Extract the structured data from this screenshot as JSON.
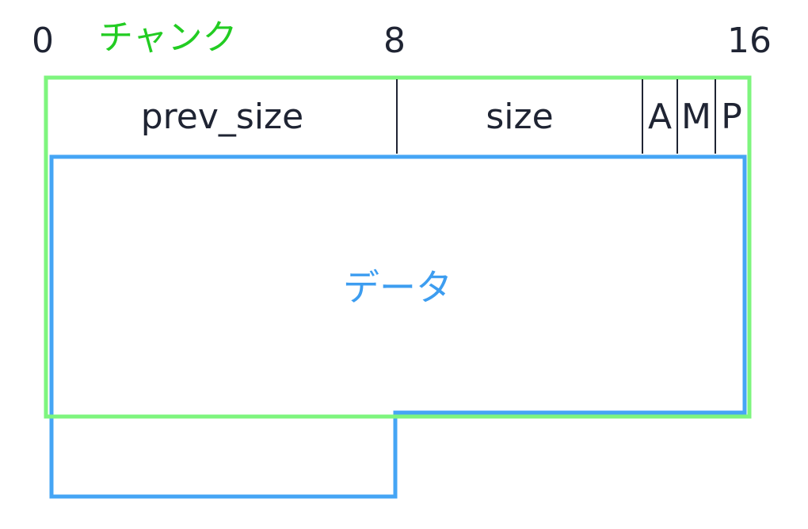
{
  "offsets": {
    "start": "0",
    "mid": "8",
    "end": "16"
  },
  "chunk": {
    "title": "チャンク"
  },
  "header": {
    "prev_size": "prev_size",
    "size": "size",
    "flag_a": "A",
    "flag_m": "M",
    "flag_p": "P"
  },
  "data_region": {
    "label": "データ"
  },
  "colors": {
    "chunk_border": "#7ef57e",
    "chunk_title": "#22cc22",
    "data_border": "#45a5f5",
    "data_text": "#3d9df0",
    "text": "#1f2433"
  }
}
